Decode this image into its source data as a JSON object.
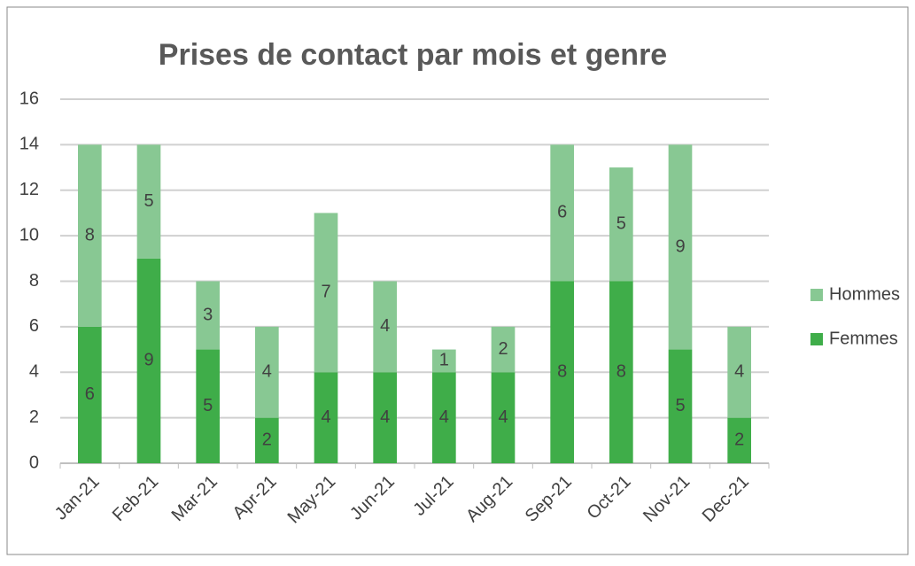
{
  "chart_data": {
    "type": "stacked_bar",
    "title": "Prises de contact par mois et genre",
    "categories": [
      "Jan-21",
      "Feb-21",
      "Mar-21",
      "Apr-21",
      "May-21",
      "Jun-21",
      "Jul-21",
      "Aug-21",
      "Sep-21",
      "Oct-21",
      "Nov-21",
      "Dec-21"
    ],
    "series": [
      {
        "name": "Femmes",
        "color": "#3fad49",
        "values": [
          6,
          9,
          5,
          2,
          4,
          4,
          4,
          4,
          8,
          8,
          5,
          2
        ]
      },
      {
        "name": "Hommes",
        "color": "#88c893",
        "values": [
          8,
          5,
          3,
          4,
          7,
          4,
          1,
          2,
          6,
          5,
          9,
          4
        ]
      }
    ],
    "ylim": [
      0,
      16
    ],
    "yticks": [
      0,
      2,
      4,
      6,
      8,
      10,
      12,
      14,
      16
    ],
    "grid": true,
    "legend": "right"
  }
}
